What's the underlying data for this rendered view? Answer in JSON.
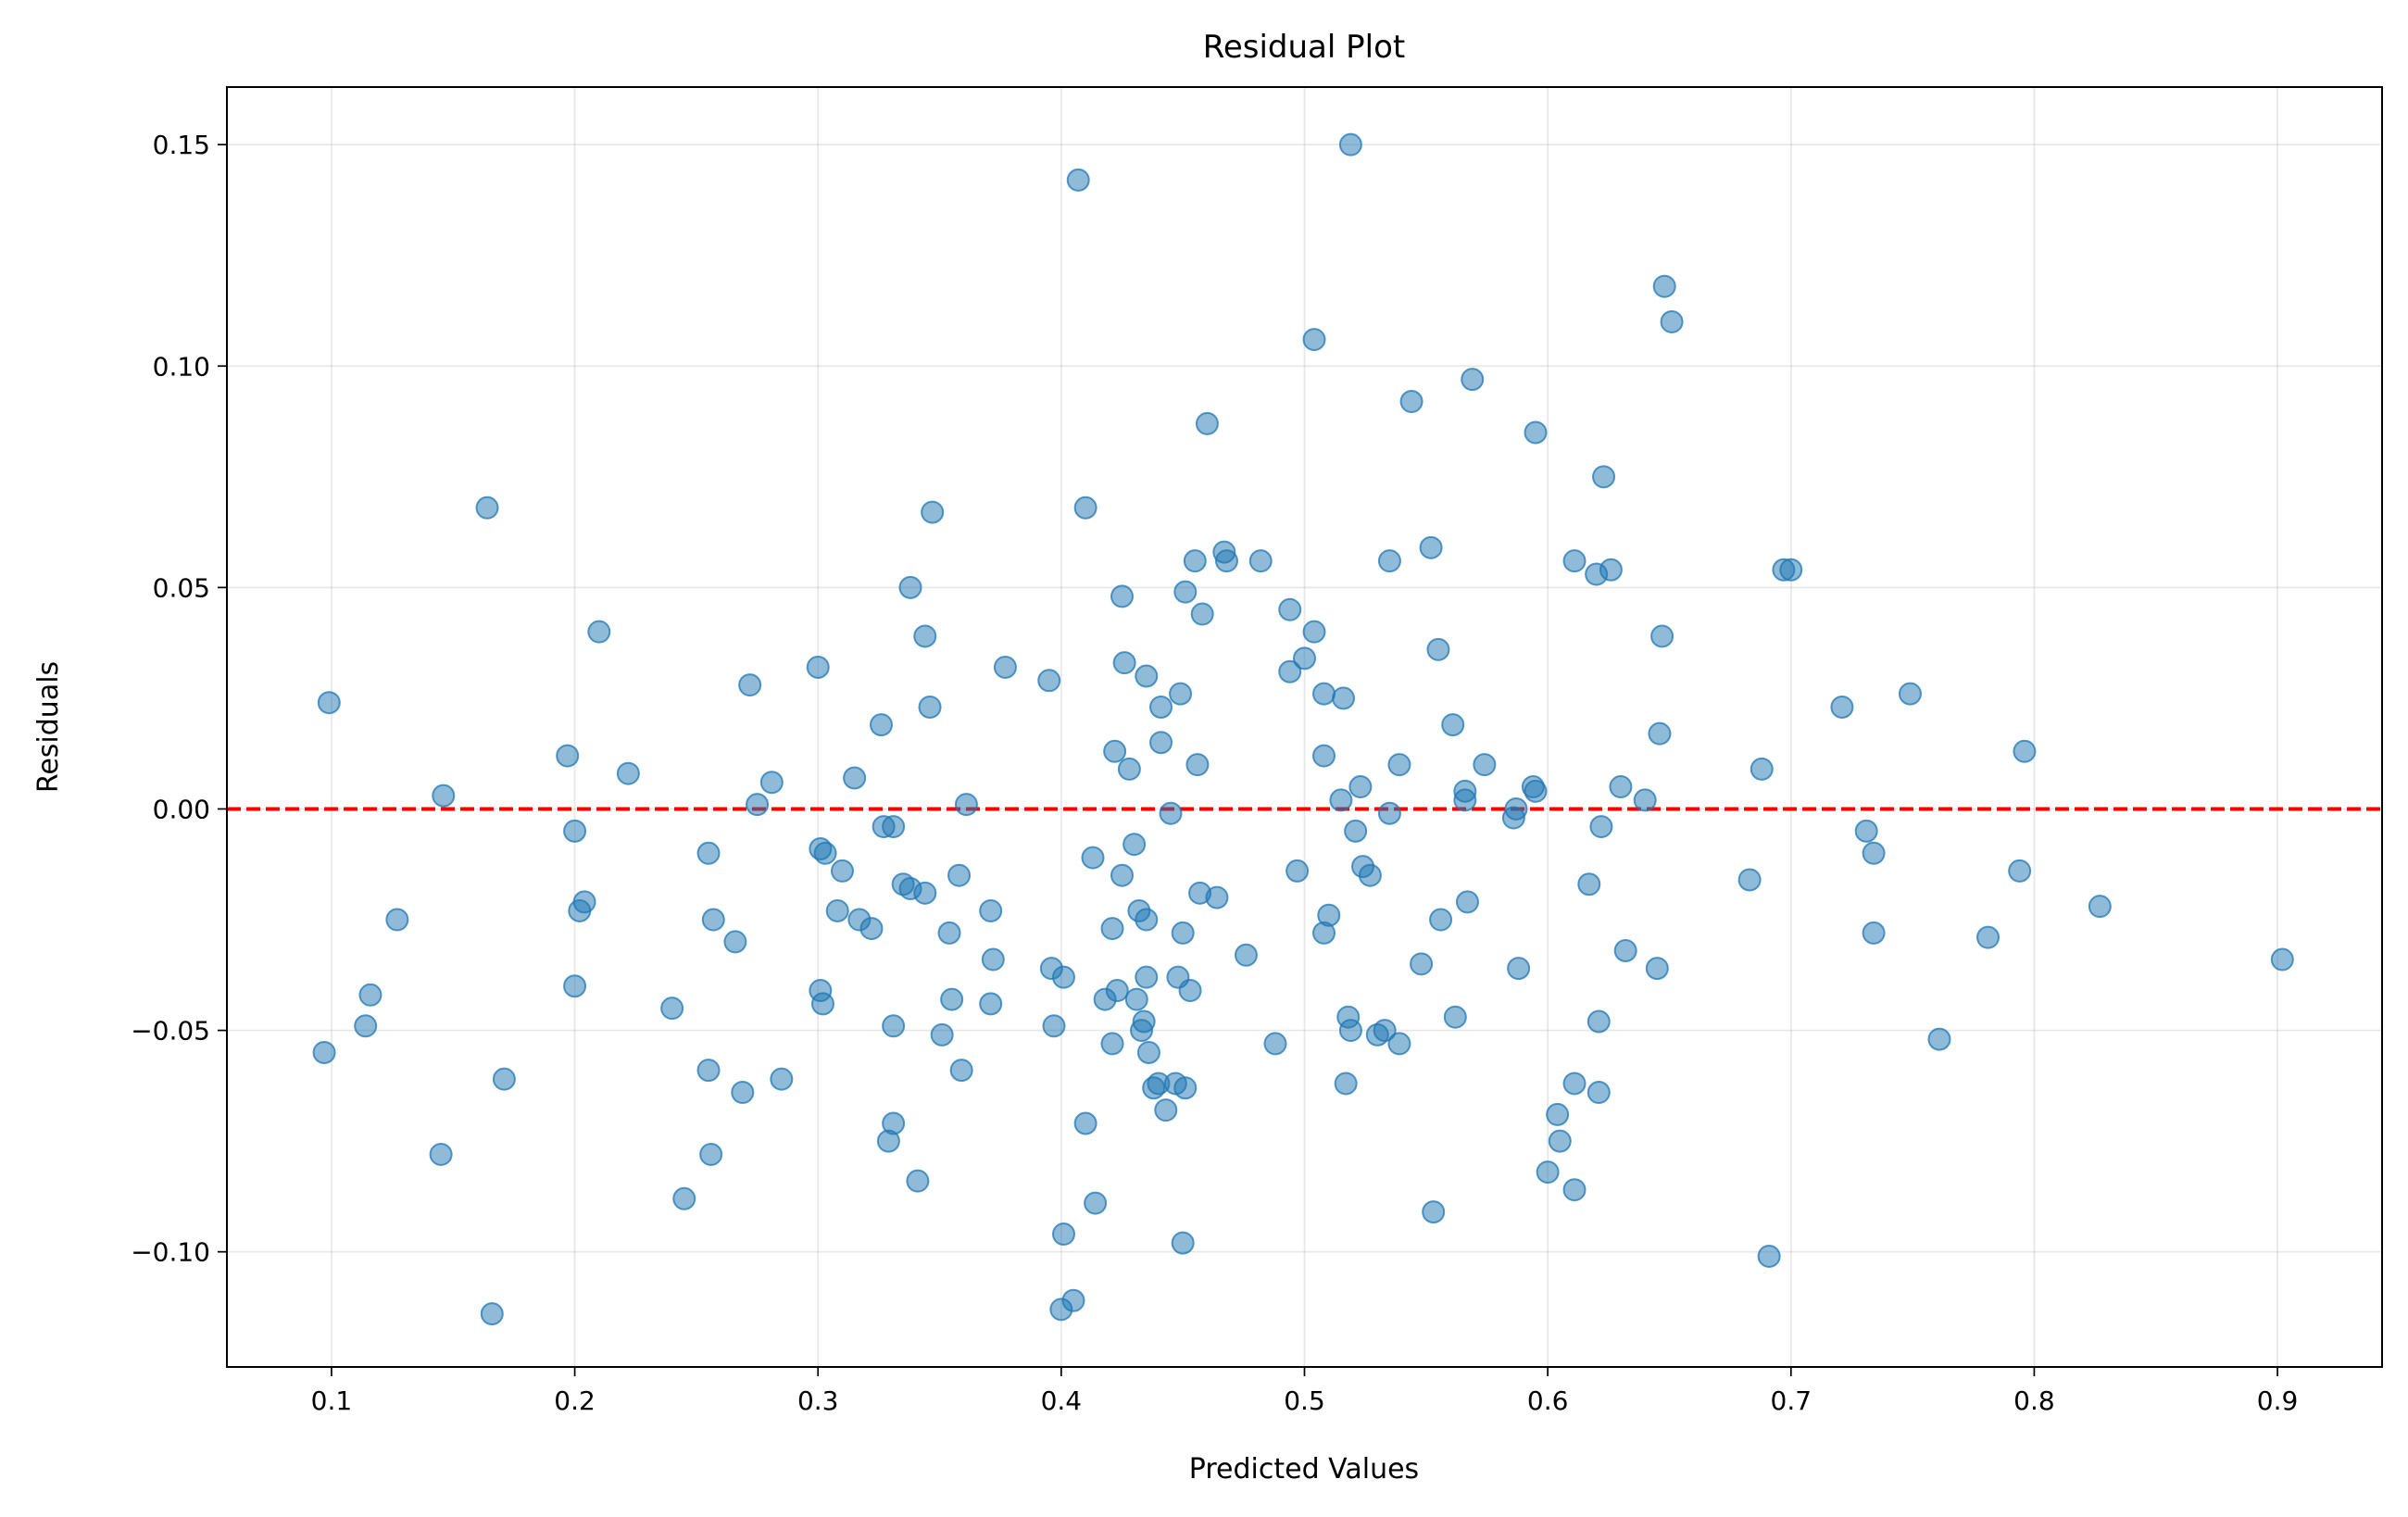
{
  "chart_data": {
    "type": "scatter",
    "title": "Residual Plot",
    "xlabel": "Predicted Values",
    "ylabel": "Residuals",
    "xlim": [
      0.057,
      0.943
    ],
    "ylim": [
      -0.126,
      0.163
    ],
    "grid": true,
    "x_ticks": [
      0.1,
      0.2,
      0.3,
      0.4,
      0.5,
      0.6,
      0.7,
      0.8,
      0.9
    ],
    "x_tick_labels": [
      "0.1",
      "0.2",
      "0.3",
      "0.4",
      "0.5",
      "0.6",
      "0.7",
      "0.8",
      "0.9"
    ],
    "y_ticks": [
      -0.1,
      -0.05,
      0.0,
      0.05,
      0.1,
      0.15
    ],
    "y_tick_labels": [
      "−0.10",
      "−0.05",
      "0.00",
      "0.05",
      "0.10",
      "0.15"
    ],
    "reference_line": {
      "y": 0,
      "style": "dashed",
      "color": "#ff0000"
    },
    "point_color": "#1f77b4",
    "point_alpha": 0.5,
    "points": [
      [
        0.099,
        0.024
      ],
      [
        0.097,
        -0.055
      ],
      [
        0.114,
        -0.049
      ],
      [
        0.116,
        -0.042
      ],
      [
        0.127,
        -0.025
      ],
      [
        0.145,
        -0.078
      ],
      [
        0.146,
        0.003
      ],
      [
        0.164,
        0.068
      ],
      [
        0.166,
        -0.114
      ],
      [
        0.171,
        -0.061
      ],
      [
        0.197,
        0.012
      ],
      [
        0.2,
        -0.005
      ],
      [
        0.2,
        -0.04
      ],
      [
        0.202,
        -0.023
      ],
      [
        0.204,
        -0.021
      ],
      [
        0.21,
        0.04
      ],
      [
        0.222,
        0.008
      ],
      [
        0.24,
        -0.045
      ],
      [
        0.245,
        -0.088
      ],
      [
        0.255,
        -0.01
      ],
      [
        0.255,
        -0.059
      ],
      [
        0.256,
        -0.078
      ],
      [
        0.257,
        -0.025
      ],
      [
        0.266,
        -0.03
      ],
      [
        0.269,
        -0.064
      ],
      [
        0.272,
        0.028
      ],
      [
        0.275,
        0.001
      ],
      [
        0.281,
        0.006
      ],
      [
        0.285,
        -0.061
      ],
      [
        0.3,
        0.032
      ],
      [
        0.301,
        -0.009
      ],
      [
        0.301,
        -0.041
      ],
      [
        0.302,
        -0.044
      ],
      [
        0.303,
        -0.01
      ],
      [
        0.308,
        -0.023
      ],
      [
        0.31,
        -0.014
      ],
      [
        0.315,
        0.007
      ],
      [
        0.317,
        -0.025
      ],
      [
        0.322,
        -0.027
      ],
      [
        0.326,
        0.019
      ],
      [
        0.327,
        -0.004
      ],
      [
        0.329,
        -0.075
      ],
      [
        0.331,
        -0.004
      ],
      [
        0.331,
        -0.049
      ],
      [
        0.331,
        -0.071
      ],
      [
        0.335,
        -0.017
      ],
      [
        0.338,
        -0.018
      ],
      [
        0.338,
        0.05
      ],
      [
        0.341,
        -0.084
      ],
      [
        0.344,
        0.039
      ],
      [
        0.344,
        -0.019
      ],
      [
        0.346,
        0.023
      ],
      [
        0.347,
        0.067
      ],
      [
        0.351,
        -0.051
      ],
      [
        0.354,
        -0.028
      ],
      [
        0.355,
        -0.043
      ],
      [
        0.358,
        -0.015
      ],
      [
        0.359,
        -0.059
      ],
      [
        0.361,
        0.001
      ],
      [
        0.371,
        -0.023
      ],
      [
        0.371,
        -0.044
      ],
      [
        0.372,
        -0.034
      ],
      [
        0.377,
        0.032
      ],
      [
        0.395,
        0.029
      ],
      [
        0.396,
        -0.036
      ],
      [
        0.397,
        -0.049
      ],
      [
        0.401,
        -0.096
      ],
      [
        0.401,
        -0.038
      ],
      [
        0.4,
        -0.113
      ],
      [
        0.405,
        -0.111
      ],
      [
        0.407,
        0.142
      ],
      [
        0.41,
        0.068
      ],
      [
        0.41,
        -0.071
      ],
      [
        0.413,
        -0.011
      ],
      [
        0.414,
        -0.089
      ],
      [
        0.418,
        -0.043
      ],
      [
        0.421,
        -0.027
      ],
      [
        0.421,
        -0.053
      ],
      [
        0.422,
        0.013
      ],
      [
        0.423,
        -0.041
      ],
      [
        0.425,
        -0.015
      ],
      [
        0.425,
        0.048
      ],
      [
        0.426,
        0.033
      ],
      [
        0.428,
        0.009
      ],
      [
        0.43,
        -0.008
      ],
      [
        0.431,
        -0.043
      ],
      [
        0.432,
        -0.023
      ],
      [
        0.433,
        -0.05
      ],
      [
        0.434,
        -0.048
      ],
      [
        0.435,
        0.03
      ],
      [
        0.435,
        -0.038
      ],
      [
        0.435,
        -0.025
      ],
      [
        0.436,
        -0.055
      ],
      [
        0.438,
        -0.063
      ],
      [
        0.44,
        -0.062
      ],
      [
        0.441,
        0.023
      ],
      [
        0.441,
        0.015
      ],
      [
        0.443,
        -0.068
      ],
      [
        0.445,
        -0.001
      ],
      [
        0.447,
        -0.062
      ],
      [
        0.448,
        -0.038
      ],
      [
        0.449,
        0.026
      ],
      [
        0.45,
        -0.098
      ],
      [
        0.45,
        -0.028
      ],
      [
        0.451,
        -0.063
      ],
      [
        0.451,
        0.049
      ],
      [
        0.453,
        -0.041
      ],
      [
        0.455,
        0.056
      ],
      [
        0.456,
        0.01
      ],
      [
        0.457,
        -0.019
      ],
      [
        0.458,
        0.044
      ],
      [
        0.46,
        0.087
      ],
      [
        0.464,
        -0.02
      ],
      [
        0.467,
        0.058
      ],
      [
        0.468,
        0.056
      ],
      [
        0.476,
        -0.033
      ],
      [
        0.482,
        0.056
      ],
      [
        0.488,
        -0.053
      ],
      [
        0.494,
        0.045
      ],
      [
        0.494,
        0.031
      ],
      [
        0.497,
        -0.014
      ],
      [
        0.5,
        0.034
      ],
      [
        0.504,
        0.106
      ],
      [
        0.504,
        0.04
      ],
      [
        0.508,
        0.026
      ],
      [
        0.508,
        -0.028
      ],
      [
        0.508,
        0.012
      ],
      [
        0.51,
        -0.024
      ],
      [
        0.515,
        0.002
      ],
      [
        0.516,
        0.025
      ],
      [
        0.517,
        -0.062
      ],
      [
        0.518,
        -0.047
      ],
      [
        0.519,
        0.15
      ],
      [
        0.519,
        -0.05
      ],
      [
        0.521,
        -0.005
      ],
      [
        0.523,
        0.005
      ],
      [
        0.524,
        -0.013
      ],
      [
        0.527,
        -0.015
      ],
      [
        0.53,
        -0.051
      ],
      [
        0.533,
        -0.05
      ],
      [
        0.535,
        -0.001
      ],
      [
        0.535,
        0.056
      ],
      [
        0.539,
        -0.053
      ],
      [
        0.539,
        0.01
      ],
      [
        0.544,
        0.092
      ],
      [
        0.548,
        -0.035
      ],
      [
        0.552,
        0.059
      ],
      [
        0.553,
        -0.091
      ],
      [
        0.555,
        0.036
      ],
      [
        0.556,
        -0.025
      ],
      [
        0.561,
        0.019
      ],
      [
        0.562,
        -0.047
      ],
      [
        0.566,
        0.004
      ],
      [
        0.566,
        0.002
      ],
      [
        0.567,
        -0.021
      ],
      [
        0.569,
        0.097
      ],
      [
        0.574,
        0.01
      ],
      [
        0.586,
        -0.002
      ],
      [
        0.587,
        0.0
      ],
      [
        0.588,
        -0.036
      ],
      [
        0.594,
        0.005
      ],
      [
        0.595,
        0.004
      ],
      [
        0.595,
        0.085
      ],
      [
        0.6,
        -0.082
      ],
      [
        0.604,
        -0.069
      ],
      [
        0.605,
        -0.075
      ],
      [
        0.611,
        0.056
      ],
      [
        0.611,
        -0.062
      ],
      [
        0.611,
        -0.086
      ],
      [
        0.617,
        -0.017
      ],
      [
        0.62,
        0.053
      ],
      [
        0.621,
        -0.048
      ],
      [
        0.621,
        -0.064
      ],
      [
        0.622,
        -0.004
      ],
      [
        0.623,
        0.075
      ],
      [
        0.626,
        0.054
      ],
      [
        0.63,
        0.005
      ],
      [
        0.632,
        -0.032
      ],
      [
        0.64,
        0.002
      ],
      [
        0.645,
        -0.036
      ],
      [
        0.646,
        0.017
      ],
      [
        0.647,
        0.039
      ],
      [
        0.648,
        0.118
      ],
      [
        0.651,
        0.11
      ],
      [
        0.683,
        -0.016
      ],
      [
        0.688,
        0.009
      ],
      [
        0.691,
        -0.101
      ],
      [
        0.697,
        0.054
      ],
      [
        0.7,
        0.054
      ],
      [
        0.721,
        0.023
      ],
      [
        0.731,
        -0.005
      ],
      [
        0.734,
        -0.01
      ],
      [
        0.734,
        -0.028
      ],
      [
        0.749,
        0.026
      ],
      [
        0.761,
        -0.052
      ],
      [
        0.781,
        -0.029
      ],
      [
        0.794,
        -0.014
      ],
      [
        0.796,
        0.013
      ],
      [
        0.827,
        -0.022
      ],
      [
        0.902,
        -0.034
      ]
    ]
  }
}
